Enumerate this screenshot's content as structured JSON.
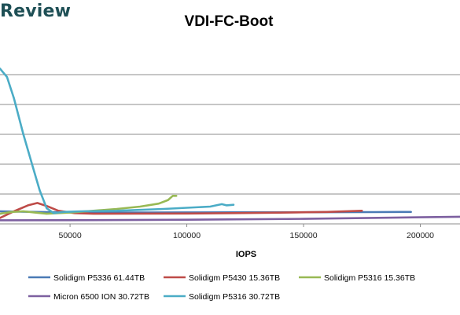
{
  "brand": {
    "text": "Review"
  },
  "chart_data": {
    "type": "line",
    "title": "VDI-FC-Boot",
    "xlabel": "IOPS",
    "ylabel": "",
    "xlim": [
      20000,
      217000
    ],
    "ylim": [
      0,
      15
    ],
    "x_ticks": [
      50000,
      100000,
      150000,
      200000
    ],
    "x_tick_labels": [
      "50000",
      "100000",
      "150000",
      "200000"
    ],
    "grid": "horizontal",
    "legend": "bottom",
    "series": [
      {
        "name": "Solidigm P5336 61.44TB",
        "color": "#4a7ab5",
        "x": [
          20000,
          40000,
          60000,
          80000,
          100000,
          120000,
          140000,
          160000,
          180000,
          196000
        ],
        "y": [
          1.05,
          0.98,
          0.95,
          0.95,
          0.96,
          0.97,
          0.97,
          0.98,
          0.99,
          1.0
        ]
      },
      {
        "name": "Solidigm P5430 15.36TB",
        "color": "#be4b48",
        "x": [
          20000,
          26000,
          32000,
          36000,
          40000,
          45000,
          52000,
          60000,
          80000,
          100000,
          120000,
          140000,
          160000,
          175000
        ],
        "y": [
          0.5,
          1.05,
          1.55,
          1.75,
          1.5,
          1.1,
          0.9,
          0.85,
          0.86,
          0.87,
          0.9,
          0.94,
          1.0,
          1.1
        ]
      },
      {
        "name": "Solidigm P5316 15.36TB",
        "color": "#98b954",
        "x": [
          20000,
          25000,
          30000,
          35000,
          40000,
          50000,
          60000,
          70000,
          80000,
          88000,
          92000,
          94000,
          95500
        ],
        "y": [
          0.85,
          1.0,
          1.05,
          0.95,
          0.85,
          0.95,
          1.1,
          1.25,
          1.45,
          1.7,
          2.0,
          2.35,
          2.35
        ]
      },
      {
        "name": "Micron 6500 ION 30.72TB",
        "color": "#7d60a0",
        "x": [
          20000,
          50000,
          100000,
          150000,
          200000,
          217000
        ],
        "y": [
          0.3,
          0.31,
          0.35,
          0.42,
          0.55,
          0.6
        ]
      },
      {
        "name": "Solidigm P5316 30.72TB",
        "color": "#4bacc6",
        "x": [
          20000,
          23000,
          26000,
          30000,
          34000,
          37000,
          40000,
          43000,
          47000,
          55000,
          70000,
          90000,
          110000,
          115000,
          117000,
          120000
        ],
        "y": [
          13.0,
          12.3,
          10.5,
          7.5,
          4.8,
          2.8,
          1.3,
          0.9,
          1.0,
          1.05,
          1.1,
          1.25,
          1.45,
          1.65,
          1.55,
          1.6
        ]
      }
    ]
  }
}
